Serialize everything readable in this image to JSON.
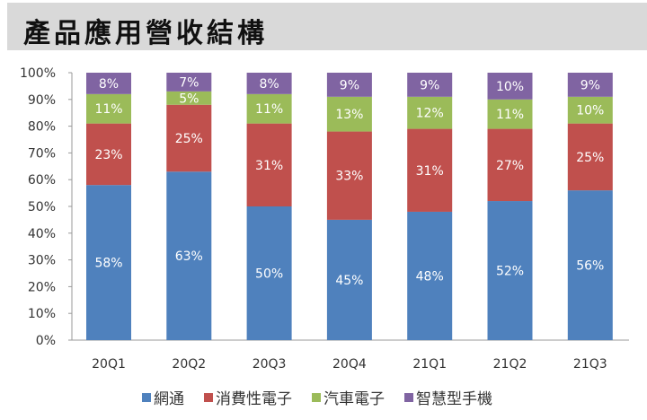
{
  "chart_data": {
    "type": "bar",
    "stacked": true,
    "title": "產品應用營收結構",
    "categories": [
      "20Q1",
      "20Q2",
      "20Q3",
      "20Q4",
      "21Q1",
      "21Q2",
      "21Q3"
    ],
    "series": [
      {
        "name": "網通",
        "color": "#4f81bd",
        "values": [
          58,
          63,
          50,
          45,
          48,
          52,
          56
        ]
      },
      {
        "name": "消費性電子",
        "color": "#c0504d",
        "values": [
          23,
          25,
          31,
          33,
          31,
          27,
          25
        ]
      },
      {
        "name": "汽車電子",
        "color": "#9bbb59",
        "values": [
          11,
          5,
          11,
          13,
          12,
          11,
          10
        ]
      },
      {
        "name": "智慧型手機",
        "color": "#8064a2",
        "values": [
          8,
          7,
          8,
          9,
          9,
          10,
          9
        ]
      }
    ],
    "yticks": [
      "0%",
      "10%",
      "20%",
      "30%",
      "40%",
      "50%",
      "60%",
      "70%",
      "80%",
      "90%",
      "100%"
    ],
    "ylim": [
      0,
      100
    ],
    "grid": false,
    "legend": "bottom"
  }
}
